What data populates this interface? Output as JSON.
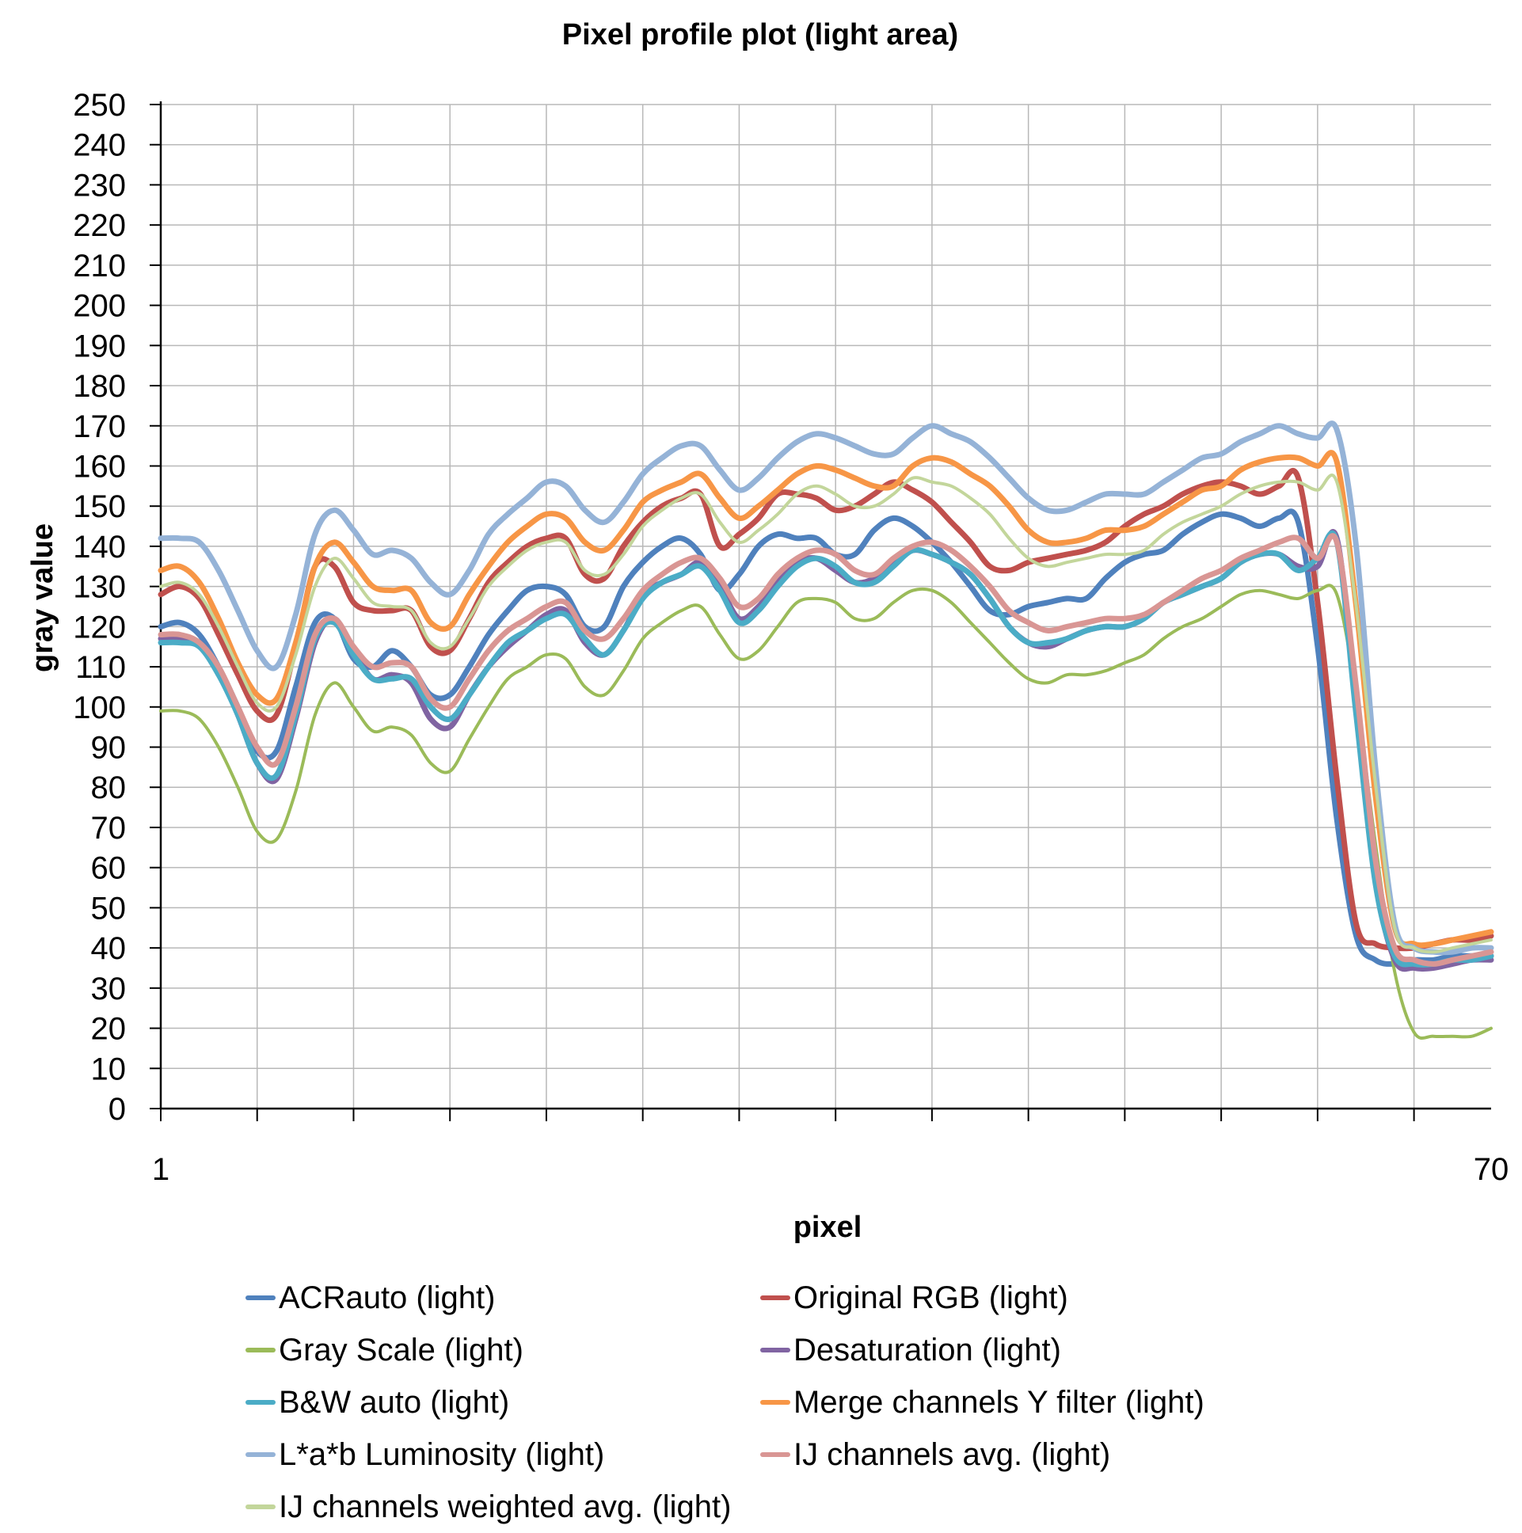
{
  "chart_data": {
    "type": "line",
    "title": "Pixel profile plot (light area)",
    "xlabel": "pixel",
    "ylabel": "gray value",
    "x_tick_labels": [
      "1",
      "70"
    ],
    "xlim": [
      1,
      70
    ],
    "ylim": [
      0,
      250
    ],
    "y_ticks": [
      0,
      10,
      20,
      30,
      40,
      50,
      60,
      70,
      80,
      90,
      100,
      110,
      120,
      130,
      140,
      150,
      160,
      170,
      180,
      190,
      200,
      210,
      220,
      230,
      240,
      250
    ],
    "grid": true,
    "legend_position": "bottom",
    "x": [
      1,
      2,
      3,
      4,
      5,
      6,
      7,
      8,
      9,
      10,
      11,
      12,
      13,
      14,
      15,
      16,
      17,
      18,
      19,
      20,
      21,
      22,
      23,
      24,
      25,
      26,
      27,
      28,
      29,
      30,
      31,
      32,
      33,
      34,
      35,
      36,
      37,
      38,
      39,
      40,
      41,
      42,
      43,
      44,
      45,
      46,
      47,
      48,
      49,
      50,
      51,
      52,
      53,
      54,
      55,
      56,
      57,
      58,
      59,
      60,
      61,
      62,
      63,
      64,
      65,
      66,
      67,
      68,
      69,
      70
    ],
    "series": [
      {
        "name": "ACRauto (light)",
        "color": "#4F81BD",
        "values": [
          120,
          121,
          118,
          110,
          100,
          89,
          89,
          105,
          121,
          122,
          112,
          110,
          114,
          110,
          103,
          103,
          110,
          118,
          124,
          129,
          130,
          128,
          120,
          120,
          130,
          136,
          140,
          142,
          138,
          129,
          133,
          140,
          143,
          142,
          142,
          138,
          138,
          144,
          147,
          145,
          141,
          136,
          130,
          124,
          123,
          125,
          126,
          127,
          127,
          132,
          136,
          138,
          139,
          143,
          146,
          148,
          147,
          145,
          147,
          146,
          115,
          72,
          43,
          37,
          36,
          37,
          37,
          38,
          38,
          38
        ],
        "width": 7
      },
      {
        "name": "Original RGB (light)",
        "color": "#C0504D",
        "values": [
          128,
          130,
          127,
          118,
          108,
          99,
          98,
          115,
          135,
          135,
          126,
          124,
          124,
          124,
          115,
          114,
          122,
          131,
          136,
          140,
          142,
          142,
          133,
          132,
          140,
          146,
          150,
          152,
          153,
          140,
          143,
          147,
          153,
          153,
          152,
          149,
          150,
          153,
          156,
          154,
          151,
          146,
          141,
          135,
          134,
          136,
          137,
          138,
          139,
          141,
          145,
          148,
          150,
          153,
          155,
          156,
          155,
          153,
          155,
          157,
          126,
          82,
          46,
          41,
          40,
          40,
          41,
          42,
          42,
          43
        ],
        "width": 7
      },
      {
        "name": "Gray Scale (light)",
        "color": "#9BBB59",
        "values": [
          99,
          99,
          97,
          90,
          80,
          69,
          67,
          79,
          98,
          106,
          100,
          94,
          95,
          93,
          86,
          84,
          92,
          100,
          107,
          110,
          113,
          112,
          105,
          103,
          109,
          117,
          121,
          124,
          125,
          118,
          112,
          114,
          120,
          126,
          127,
          126,
          122,
          122,
          126,
          129,
          129,
          126,
          121,
          116,
          111,
          107,
          106,
          108,
          108,
          109,
          111,
          113,
          117,
          120,
          122,
          125,
          128,
          129,
          128,
          127,
          129,
          128,
          103,
          66,
          34,
          19,
          18,
          18,
          18,
          20
        ],
        "width": 4
      },
      {
        "name": "Desaturation (light)",
        "color": "#8064A2",
        "values": [
          117,
          117,
          116,
          109,
          98,
          86,
          82,
          97,
          116,
          122,
          114,
          107,
          108,
          106,
          97,
          95,
          103,
          110,
          115,
          119,
          123,
          124,
          116,
          113,
          119,
          128,
          131,
          133,
          136,
          130,
          122,
          125,
          131,
          136,
          137,
          134,
          131,
          132,
          136,
          139,
          138,
          136,
          133,
          127,
          120,
          116,
          115,
          117,
          119,
          120,
          120,
          122,
          126,
          128,
          130,
          132,
          136,
          138,
          138,
          135,
          135,
          142,
          100,
          57,
          37,
          35,
          35,
          36,
          37,
          37
        ],
        "width": 7
      },
      {
        "name": "B&W auto (light)",
        "color": "#4BACC6",
        "values": [
          116,
          116,
          115,
          108,
          98,
          86,
          83,
          98,
          117,
          121,
          113,
          107,
          107,
          107,
          100,
          97,
          103,
          110,
          116,
          119,
          122,
          123,
          117,
          113,
          119,
          127,
          131,
          133,
          135,
          129,
          121,
          124,
          130,
          135,
          137,
          135,
          131,
          131,
          135,
          139,
          138,
          136,
          133,
          127,
          120,
          116,
          116,
          117,
          119,
          120,
          120,
          122,
          126,
          128,
          130,
          132,
          136,
          138,
          138,
          134,
          137,
          141,
          98,
          56,
          38,
          36,
          36,
          37,
          37,
          38
        ],
        "width": 7
      },
      {
        "name": "Merge channels Y filter (light)",
        "color": "#F79646",
        "values": [
          134,
          135,
          131,
          122,
          111,
          103,
          102,
          116,
          135,
          141,
          136,
          130,
          129,
          129,
          121,
          120,
          128,
          135,
          141,
          145,
          148,
          147,
          141,
          139,
          144,
          151,
          154,
          156,
          158,
          152,
          147,
          150,
          154,
          158,
          160,
          159,
          157,
          155,
          155,
          160,
          162,
          161,
          158,
          155,
          150,
          144,
          141,
          141,
          142,
          144,
          144,
          145,
          148,
          151,
          154,
          155,
          159,
          161,
          162,
          162,
          160,
          161,
          125,
          78,
          45,
          41,
          41,
          42,
          43,
          44
        ],
        "width": 7
      },
      {
        "name": "L*a*b Luminosity (light)",
        "color": "#95B3D7",
        "values": [
          142,
          142,
          141,
          134,
          124,
          114,
          110,
          123,
          143,
          149,
          144,
          138,
          139,
          137,
          131,
          128,
          134,
          143,
          148,
          152,
          156,
          155,
          149,
          146,
          151,
          158,
          162,
          165,
          165,
          159,
          154,
          157,
          162,
          166,
          168,
          167,
          165,
          163,
          163,
          167,
          170,
          168,
          166,
          162,
          157,
          152,
          149,
          149,
          151,
          153,
          153,
          153,
          156,
          159,
          162,
          163,
          166,
          168,
          170,
          168,
          167,
          169,
          140,
          85,
          46,
          40,
          39,
          39,
          40,
          40
        ],
        "width": 7
      },
      {
        "name": "IJ channels avg. (light)",
        "color": "#D99694",
        "values": [
          118,
          118,
          116,
          110,
          100,
          90,
          86,
          100,
          118,
          122,
          115,
          110,
          111,
          110,
          102,
          100,
          107,
          114,
          119,
          122,
          125,
          126,
          119,
          117,
          122,
          129,
          133,
          136,
          137,
          132,
          125,
          127,
          133,
          137,
          139,
          138,
          134,
          133,
          137,
          140,
          141,
          139,
          135,
          130,
          124,
          121,
          119,
          120,
          121,
          122,
          122,
          123,
          126,
          129,
          132,
          134,
          137,
          139,
          141,
          142,
          137,
          141,
          105,
          62,
          40,
          37,
          36,
          37,
          38,
          39
        ],
        "width": 7
      },
      {
        "name": "IJ channels weighted avg. (light)",
        "color": "#C3D69B",
        "values": [
          130,
          131,
          128,
          120,
          110,
          101,
          100,
          113,
          130,
          137,
          132,
          126,
          125,
          124,
          116,
          115,
          122,
          130,
          135,
          139,
          141,
          141,
          134,
          133,
          138,
          145,
          149,
          152,
          153,
          146,
          141,
          144,
          148,
          153,
          155,
          153,
          150,
          150,
          153,
          157,
          156,
          155,
          152,
          148,
          142,
          137,
          135,
          136,
          137,
          138,
          138,
          139,
          143,
          146,
          148,
          150,
          153,
          155,
          156,
          156,
          154,
          156,
          125,
          81,
          45,
          40,
          39,
          40,
          41,
          42
        ],
        "width": 4
      }
    ]
  }
}
